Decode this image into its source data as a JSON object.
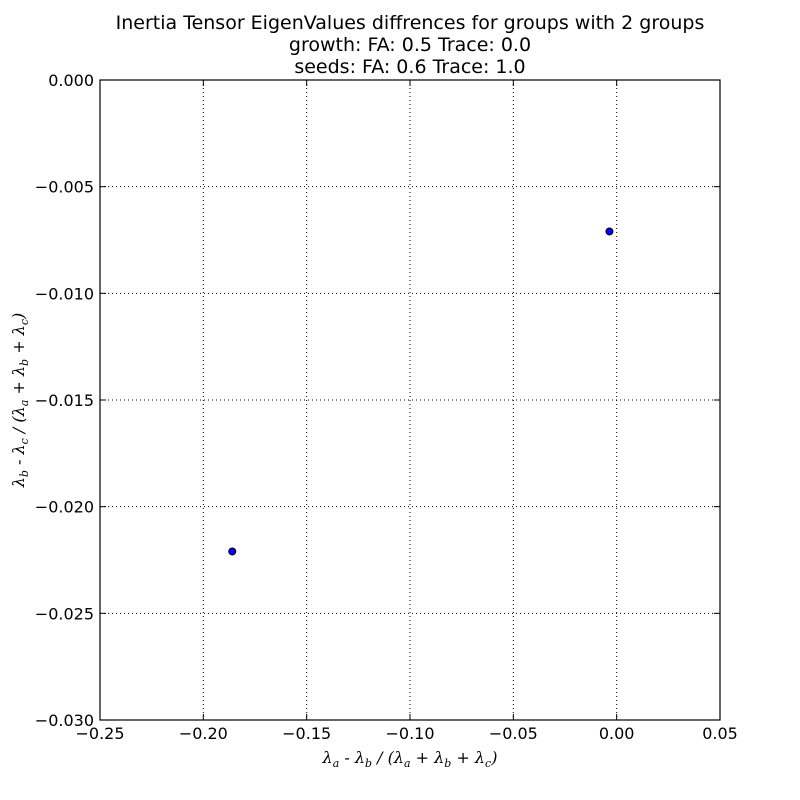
{
  "chart_data": {
    "type": "scatter",
    "title": [
      "Inertia Tensor EigenValues diffrences for groups with 2 groups",
      "growth: FA: 0.5 Trace: 0.0",
      "seeds: FA: 0.6 Trace: 1.0"
    ],
    "xlabel": "λa - λb / (λa + λb + λc)",
    "ylabel": "λb - λc / (λa + λb + λc)",
    "xlim": [
      -0.25,
      0.05
    ],
    "ylim": [
      -0.03,
      0.0
    ],
    "xticks": [
      -0.25,
      -0.2,
      -0.15,
      -0.1,
      -0.05,
      0.0,
      0.05
    ],
    "xtick_labels": [
      "−0.25",
      "−0.20",
      "−0.15",
      "−0.10",
      "−0.05",
      "0.00",
      "0.05"
    ],
    "yticks": [
      0.0,
      -0.005,
      -0.01,
      -0.015,
      -0.02,
      -0.025,
      -0.03
    ],
    "ytick_labels": [
      "0.000",
      "−0.005",
      "−0.010",
      "−0.015",
      "−0.020",
      "−0.025",
      "−0.030"
    ],
    "grid": true,
    "points": [
      {
        "x": -0.186,
        "y": -0.0221
      },
      {
        "x": -0.0035,
        "y": -0.0071
      }
    ],
    "marker_color": "#0000ff"
  }
}
